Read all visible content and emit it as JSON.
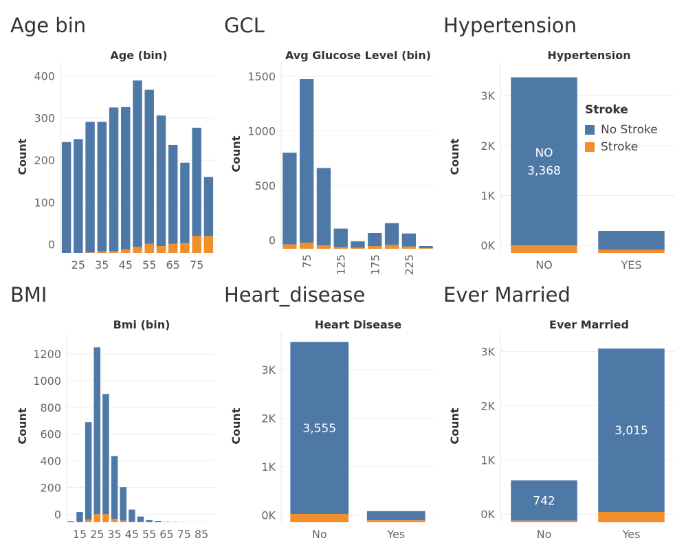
{
  "colors": {
    "no_stroke": "#4e79a7",
    "stroke": "#f28e2b",
    "grid": "#eeeeee"
  },
  "legend": {
    "title": "Stroke",
    "items": [
      {
        "label": "No Stroke",
        "color": "#4e79a7"
      },
      {
        "label": "Stroke",
        "color": "#f28e2b"
      }
    ]
  },
  "panels": [
    {
      "heading": "Age bin"
    },
    {
      "heading": "GCL"
    },
    {
      "heading": "Hypertension"
    },
    {
      "heading": "BMI"
    },
    {
      "heading": "Heart_disease"
    },
    {
      "heading": "Ever Married"
    }
  ],
  "chart_data": [
    {
      "type": "bar",
      "title": "Age (bin)",
      "ylabel": "Count",
      "xlabel": "",
      "ylim": [
        -20,
        430
      ],
      "yticks": [
        0,
        100,
        200,
        300,
        400
      ],
      "ytick_labels": [
        "0",
        "100",
        "200",
        "300",
        "400"
      ],
      "categories": [
        "20",
        "25",
        "30",
        "35",
        "40",
        "45",
        "50",
        "55",
        "60",
        "65",
        "70",
        "75",
        "80"
      ],
      "xtick_labels": [
        "25",
        "35",
        "45",
        "55",
        "65",
        "75"
      ],
      "xtick_positions": [
        "25",
        "35",
        "45",
        "55",
        "65",
        "75"
      ],
      "series": [
        {
          "name": "No Stroke",
          "values": [
            263,
            270,
            310,
            308,
            341,
            338,
            395,
            365,
            310,
            234,
            191,
            257,
            140
          ]
        },
        {
          "name": "Stroke",
          "values": [
            0,
            0,
            1,
            3,
            4,
            8,
            14,
            22,
            16,
            22,
            23,
            40,
            40
          ]
        }
      ]
    },
    {
      "type": "bar",
      "title": "Avg Glucose Level (bin)",
      "ylabel": "Count",
      "xlabel": "",
      "ylim": [
        -80,
        1620
      ],
      "yticks": [
        0,
        500,
        1000,
        1500
      ],
      "ytick_labels": [
        "0",
        "500",
        "1000",
        "1500"
      ],
      "categories": [
        "50",
        "75",
        "100",
        "125",
        "150",
        "175",
        "200",
        "225",
        "250"
      ],
      "xtick_labels": [
        "75",
        "125",
        "175",
        "225"
      ],
      "xtick_positions": [
        "75",
        "125",
        "175",
        "225"
      ],
      "series": [
        {
          "name": "No Stroke",
          "values": [
            840,
            1500,
            710,
            170,
            60,
            120,
            200,
            120,
            20
          ]
        },
        {
          "name": "Stroke",
          "values": [
            40,
            55,
            30,
            15,
            8,
            25,
            35,
            20,
            5
          ]
        }
      ]
    },
    {
      "type": "bar",
      "title": "Hypertension",
      "ylabel": "Count",
      "xlabel": "",
      "ylim": [
        -150,
        3650
      ],
      "yticks": [
        0,
        1000,
        2000,
        3000
      ],
      "ytick_labels": [
        "0K",
        "1K",
        "2K",
        "3K"
      ],
      "categories": [
        "NO",
        "YES"
      ],
      "xtick_labels": [
        "NO",
        "YES"
      ],
      "xtick_positions": [
        "NO",
        "YES"
      ],
      "bar_labels": [
        "NO\n3,368",
        ""
      ],
      "series": [
        {
          "name": "No Stroke",
          "values": [
            3368,
            380
          ]
        },
        {
          "name": "Stroke",
          "values": [
            150,
            60
          ]
        }
      ]
    },
    {
      "type": "bar",
      "title": "Bmi (bin)",
      "ylabel": "Count",
      "xlabel": "",
      "ylim": [
        -60,
        1360
      ],
      "yticks": [
        0,
        200,
        400,
        600,
        800,
        1000,
        1200
      ],
      "ytick_labels": [
        "0",
        "200",
        "400",
        "600",
        "800",
        "1000",
        "1200"
      ],
      "categories": [
        "10",
        "15",
        "20",
        "25",
        "30",
        "35",
        "40",
        "45",
        "50",
        "55",
        "60",
        "65",
        "70",
        "75",
        "80",
        "85",
        "90"
      ],
      "xtick_labels": [
        "15",
        "25",
        "35",
        "45",
        "55",
        "65",
        "75",
        "85"
      ],
      "xtick_positions": [
        "15",
        "25",
        "35",
        "45",
        "55",
        "65",
        "75",
        "85"
      ],
      "series": [
        {
          "name": "No Stroke",
          "values": [
            8,
            75,
            730,
            1250,
            900,
            470,
            250,
            90,
            40,
            15,
            10,
            3,
            2,
            1,
            1,
            1,
            0
          ]
        },
        {
          "name": "Stroke",
          "values": [
            0,
            2,
            20,
            60,
            60,
            25,
            12,
            5,
            3,
            1,
            0,
            0,
            0,
            0,
            0,
            0,
            0
          ]
        }
      ]
    },
    {
      "type": "bar",
      "title": "Heart Disease",
      "ylabel": "Count",
      "xlabel": "",
      "ylim": [
        -150,
        3770
      ],
      "yticks": [
        0,
        1000,
        2000,
        3000
      ],
      "ytick_labels": [
        "0K",
        "1K",
        "2K",
        "3K"
      ],
      "categories": [
        "No",
        "Yes"
      ],
      "xtick_labels": [
        "No",
        "Yes"
      ],
      "xtick_positions": [
        "No",
        "Yes"
      ],
      "bar_labels": [
        "3,555",
        ""
      ],
      "series": [
        {
          "name": "No Stroke",
          "values": [
            3555,
            190
          ]
        },
        {
          "name": "Stroke",
          "values": [
            170,
            40
          ]
        }
      ]
    },
    {
      "type": "bar",
      "title": "Ever Married",
      "ylabel": "Count",
      "xlabel": "",
      "ylim": [
        -150,
        3350
      ],
      "yticks": [
        0,
        1000,
        2000,
        3000
      ],
      "ytick_labels": [
        "0K",
        "1K",
        "2K",
        "3K"
      ],
      "categories": [
        "No",
        "Yes"
      ],
      "xtick_labels": [
        "No",
        "Yes"
      ],
      "xtick_positions": [
        "No",
        "Yes"
      ],
      "bar_labels": [
        "742",
        "3,015"
      ],
      "series": [
        {
          "name": "No Stroke",
          "values": [
            742,
            3015
          ]
        },
        {
          "name": "Stroke",
          "values": [
            30,
            190
          ]
        }
      ]
    }
  ]
}
